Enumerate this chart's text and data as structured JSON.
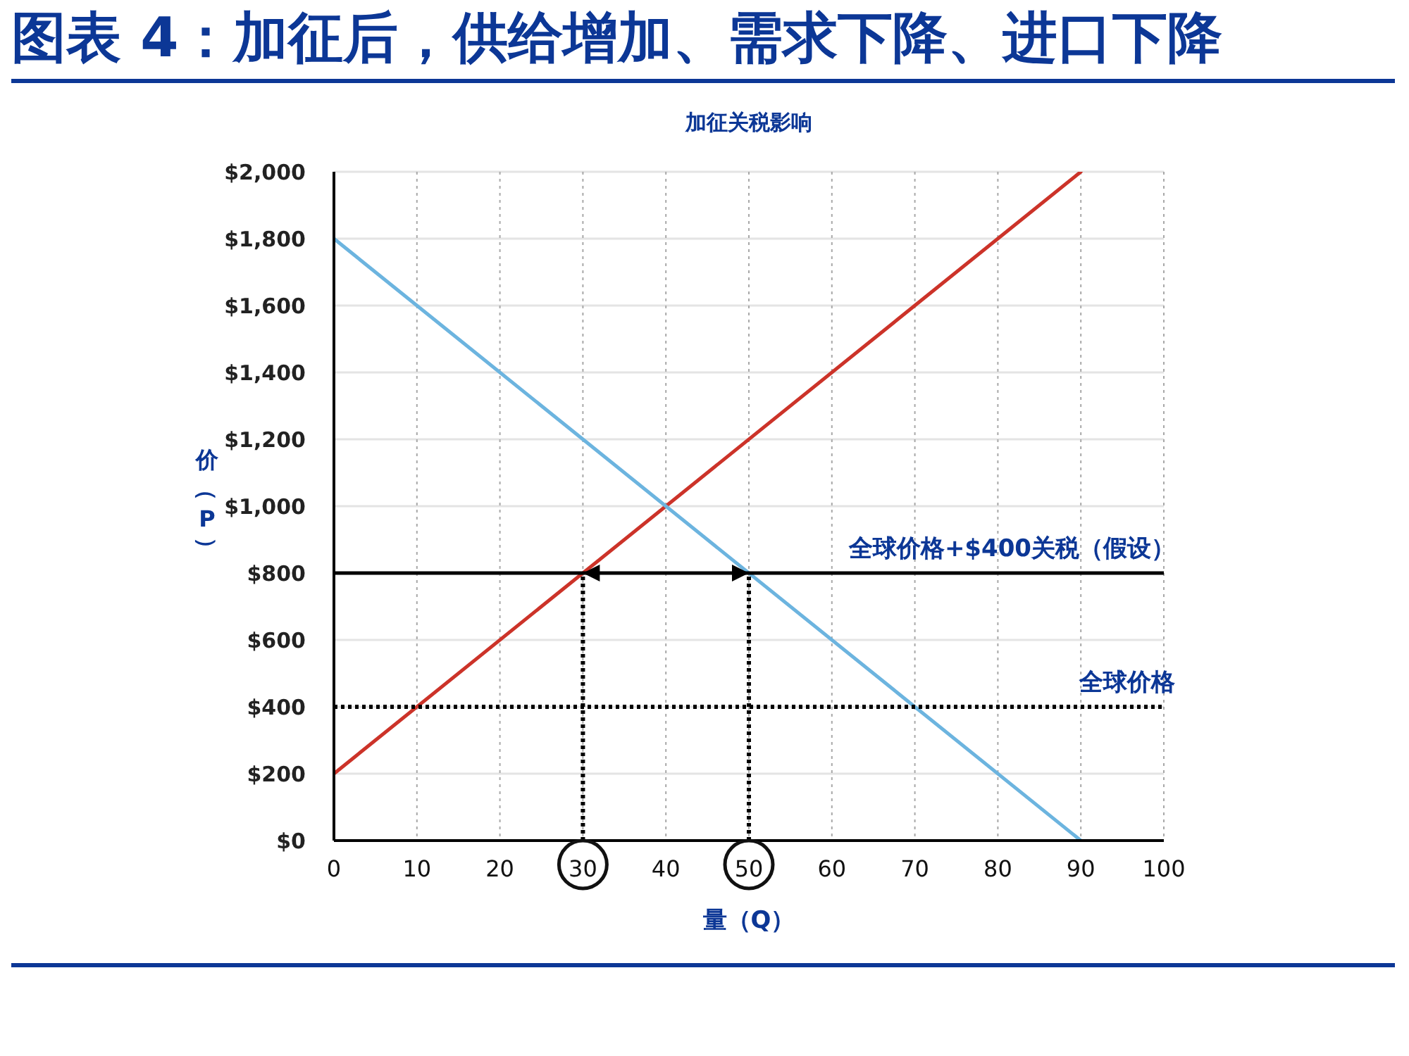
{
  "chart_data": {
    "type": "line",
    "title": "图表 4：加征后，供给增加、需求下降、进口下降",
    "subtitle": "加征关税影响",
    "xlabel": "量（Q）",
    "ylabel": "价（P）",
    "series": [
      {
        "color": "#cc3329",
        "x": [
          0,
          90
        ],
        "values": [
          200,
          2000
        ]
      },
      {
        "color": "#6cb4df",
        "x": [
          0,
          90
        ],
        "values": [
          1800,
          0
        ]
      },
      {
        "color": "#000000",
        "x": [
          30,
          30
        ],
        "values": [
          0,
          800
        ],
        "line_style": "dotted"
      },
      {
        "color": "#000000",
        "x": [
          50,
          50
        ],
        "values": [
          0,
          800
        ],
        "line_style": "dotted"
      }
    ],
    "xlim": [
      0,
      100
    ],
    "xticks": [
      0,
      10,
      20,
      30,
      40,
      50,
      60,
      70,
      80,
      90,
      100
    ],
    "ylim": [
      0,
      2000
    ],
    "yticks": [
      {
        "value": 0,
        "label": "$0"
      },
      {
        "value": 200,
        "label": "$200"
      },
      {
        "value": 400,
        "label": "$400"
      },
      {
        "value": 600,
        "label": "$600"
      },
      {
        "value": 800,
        "label": "$800"
      },
      {
        "value": 1000,
        "label": "$1,000"
      },
      {
        "value": 1200,
        "label": "$1,200"
      },
      {
        "value": 1400,
        "label": "$1,400"
      },
      {
        "value": 1600,
        "label": "$1,600"
      },
      {
        "value": 1800,
        "label": "$1,800"
      },
      {
        "value": 2000,
        "label": "$2,000"
      }
    ],
    "ref_lines": [
      {
        "axis": "y",
        "value": 800,
        "label": "全球价格+$400关税（假设）",
        "color": "#000000",
        "line_style": "solid"
      },
      {
        "axis": "y",
        "value": 400,
        "label": "全球价格",
        "color": "#000000",
        "line_style": "dotted"
      }
    ],
    "grid": true
  }
}
